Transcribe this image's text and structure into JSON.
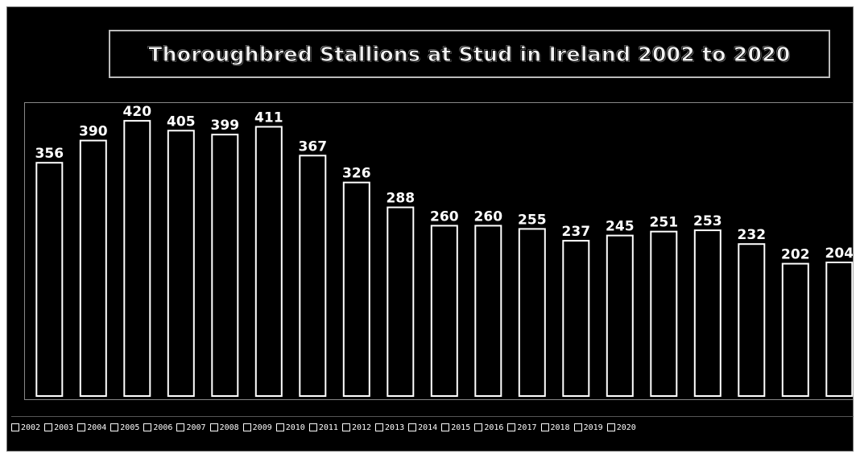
{
  "chart_data": {
    "type": "bar",
    "title": "Thoroughbred Stallions at Stud  in Ireland 2002 to 2020",
    "categories": [
      "2002",
      "2003",
      "2004",
      "2005",
      "2006",
      "2007",
      "2008",
      "2009",
      "2010",
      "2011",
      "2012",
      "2013",
      "2014",
      "2015",
      "2016",
      "2017",
      "2018",
      "2019",
      "2020"
    ],
    "values": [
      356,
      390,
      420,
      405,
      399,
      411,
      367,
      326,
      288,
      260,
      260,
      255,
      237,
      245,
      251,
      253,
      232,
      202,
      204
    ],
    "ylim": [
      0,
      430
    ],
    "legend_position": "bottom",
    "grid": false,
    "colors": {
      "background": "#000000",
      "bar_outline": "#ffffff",
      "bar_fill": "#000000",
      "text": "#ffffff"
    }
  }
}
